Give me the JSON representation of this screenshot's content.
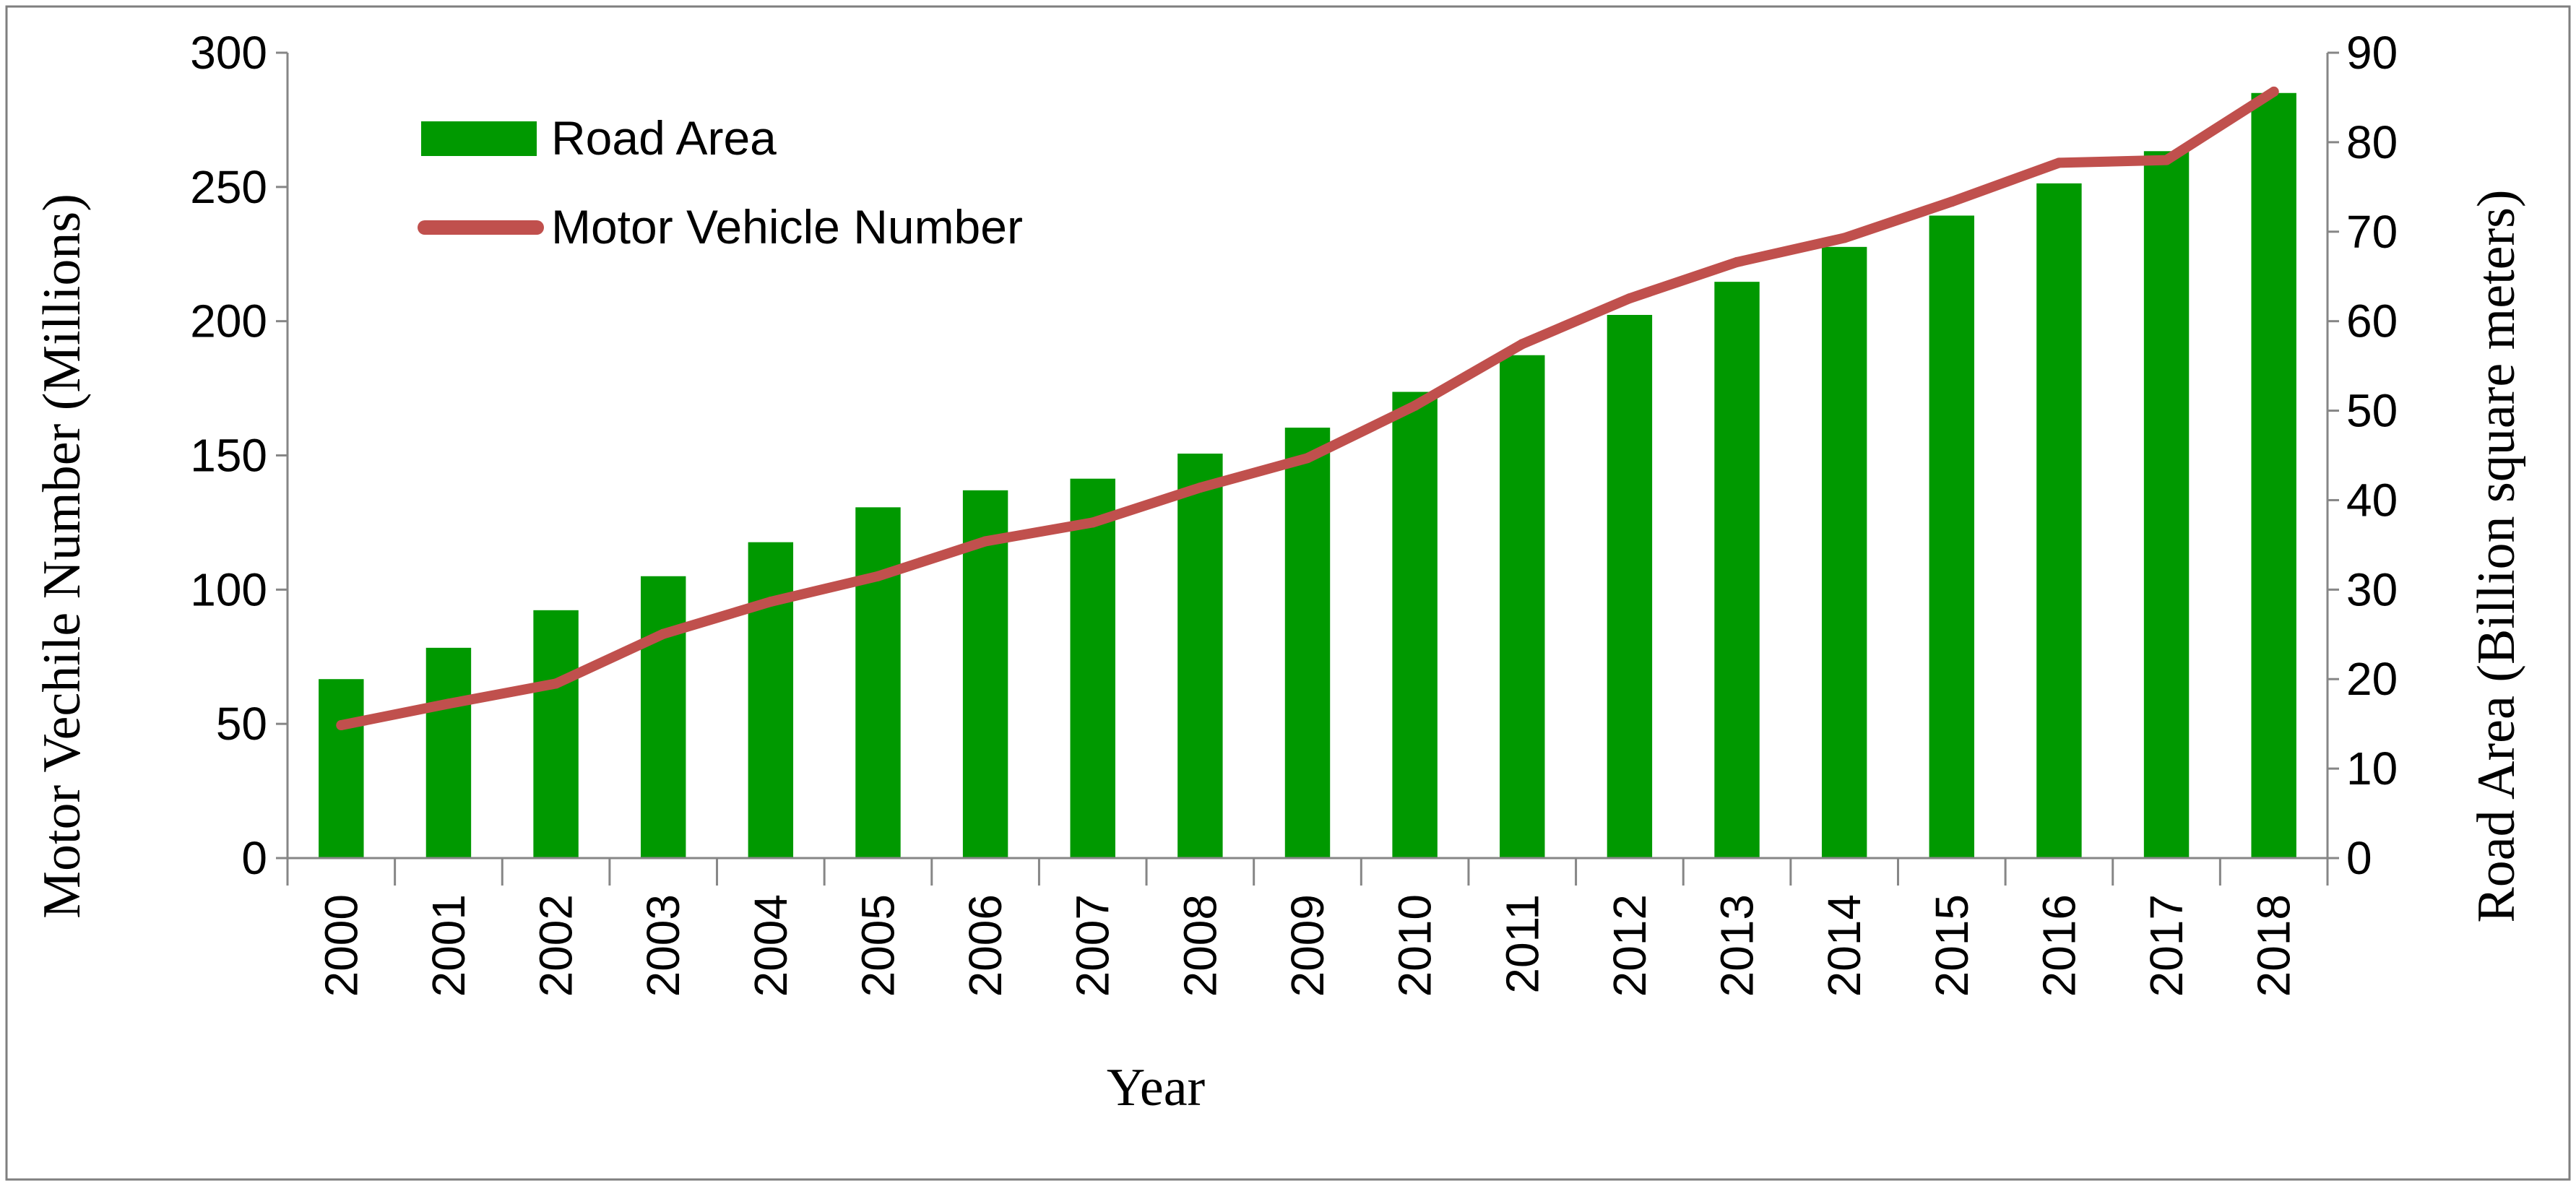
{
  "chart_data": {
    "type": "bar+line",
    "title": "",
    "xlabel": "Year",
    "ylabel_left": "Motor Vechile Number (Millions)",
    "ylabel_right": "Road Area (Billion square meters)",
    "ylim_left": [
      0,
      300
    ],
    "ylim_right": [
      0,
      90
    ],
    "yticks_left": [
      "0",
      "50",
      "100",
      "150",
      "200",
      "250",
      "300"
    ],
    "yticks_right": [
      "0",
      "10",
      "20",
      "30",
      "40",
      "50",
      "60",
      "70",
      "80",
      "90"
    ],
    "categories": [
      "2000",
      "2001",
      "2002",
      "2003",
      "2004",
      "2005",
      "2006",
      "2007",
      "2008",
      "2009",
      "2010",
      "2011",
      "2012",
      "2013",
      "2014",
      "2015",
      "2016",
      "2017",
      "2018"
    ],
    "series": [
      {
        "name": "Road Area",
        "type": "bar",
        "axis": "right",
        "color": "#009900",
        "values": [
          20.0,
          23.5,
          27.7,
          31.5,
          35.3,
          39.2,
          41.1,
          42.4,
          45.2,
          48.1,
          52.1,
          56.2,
          60.7,
          64.4,
          68.3,
          71.8,
          75.4,
          79.0,
          85.5
        ]
      },
      {
        "name": "Motor Vehicle Number",
        "type": "line",
        "axis": "left",
        "color": "#c0504d",
        "values": [
          49.5,
          57.5,
          65.0,
          83.5,
          95.5,
          105.0,
          118.0,
          125.0,
          138.0,
          149.0,
          168.5,
          191.5,
          208.5,
          222.0,
          231.0,
          244.5,
          259.0,
          260.0,
          285.5
        ]
      }
    ],
    "legend_position": "top-left"
  }
}
